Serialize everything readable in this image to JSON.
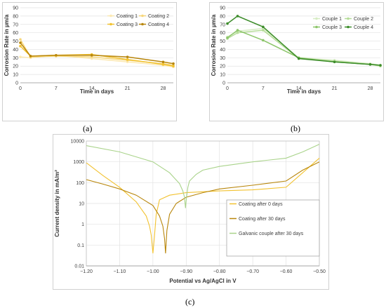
{
  "panels": {
    "a_label": "(a)",
    "b_label": "(b)",
    "c_label": "(c)"
  },
  "chart_data": [
    {
      "id": "a",
      "type": "line",
      "xlabel": "Time in days",
      "ylabel": "Corrosion Rate in µm/a",
      "xlim": [
        0,
        30
      ],
      "ylim": [
        0,
        90
      ],
      "xticks": [
        0,
        7,
        14,
        21,
        28
      ],
      "yticks": [
        0,
        10,
        20,
        30,
        40,
        50,
        60,
        70,
        80,
        90
      ],
      "grid": true,
      "legend": "top-right",
      "series": [
        {
          "name": "Coating 1",
          "color": "#fce9b3",
          "x": [
            0,
            2,
            7,
            14,
            21,
            28,
            30
          ],
          "y": [
            31,
            30,
            33,
            29,
            25,
            21,
            19
          ]
        },
        {
          "name": "Coating 2",
          "color": "#f7d77a",
          "x": [
            0,
            2,
            7,
            14,
            21,
            28,
            30
          ],
          "y": [
            52,
            31,
            32,
            31,
            27,
            23,
            21
          ]
        },
        {
          "name": "Coating 3",
          "color": "#f2c230",
          "x": [
            0,
            2,
            7,
            14,
            21,
            28,
            30
          ],
          "y": [
            44,
            32,
            33,
            34,
            28,
            22,
            20
          ]
        },
        {
          "name": "Coating 4",
          "color": "#b8860b",
          "x": [
            0,
            2,
            7,
            14,
            21,
            28,
            30
          ],
          "y": [
            48,
            32,
            33,
            33,
            31,
            25,
            23
          ]
        }
      ]
    },
    {
      "id": "b",
      "type": "line",
      "xlabel": "Time in days",
      "ylabel": "Corrosion Rate in µm/a",
      "xlim": [
        0,
        30
      ],
      "ylim": [
        0,
        90
      ],
      "xticks": [
        0,
        7,
        14,
        21,
        28
      ],
      "yticks": [
        0,
        10,
        20,
        30,
        40,
        50,
        60,
        70,
        80,
        90
      ],
      "grid": true,
      "legend": "top-right",
      "series": [
        {
          "name": "Couple 1",
          "color": "#d6ecc4",
          "x": [
            0,
            2,
            7,
            14,
            21,
            28,
            30
          ],
          "y": [
            55,
            62,
            65,
            30,
            27,
            23,
            21
          ]
        },
        {
          "name": "Couple 2",
          "color": "#b5dc98",
          "x": [
            0,
            2,
            7,
            14,
            21,
            28,
            30
          ],
          "y": [
            53,
            60,
            63,
            29,
            26,
            22,
            20
          ]
        },
        {
          "name": "Couple 3",
          "color": "#8cc56a",
          "x": [
            0,
            2,
            7,
            14,
            21,
            28,
            30
          ],
          "y": [
            54,
            63,
            51,
            30,
            25,
            22,
            21
          ]
        },
        {
          "name": "Couple 4",
          "color": "#3c8c2a",
          "x": [
            0,
            2,
            7,
            14,
            21,
            28,
            30
          ],
          "y": [
            71,
            80,
            67,
            29,
            25,
            22,
            21
          ]
        }
      ]
    },
    {
      "id": "c",
      "type": "line",
      "xlabel": "Potential vs Ag/AgCl in V",
      "ylabel": "Current density in mA/m²",
      "yscale": "log",
      "xlim": [
        -1.2,
        -0.5
      ],
      "ylim": [
        0.01,
        10000
      ],
      "xticks": [
        -1.2,
        -1.1,
        -1.0,
        -0.9,
        -0.8,
        -0.7,
        -0.6,
        -0.5
      ],
      "xtick_labels": [
        "−1.20",
        "−1.10",
        "−1.00",
        "−0.90",
        "−0.80",
        "−0.70",
        "−0.60",
        "−0.50"
      ],
      "yticks": [
        0.01,
        0.1,
        1,
        10,
        100,
        1000,
        10000
      ],
      "ytick_labels": [
        "0.01",
        "0.1",
        "1",
        "10",
        "100",
        "1000",
        "10000"
      ],
      "grid": true,
      "legend": "bottom-right",
      "series": [
        {
          "name": "Coating after 0 days",
          "color": "#f2c230",
          "x": [
            -1.2,
            -1.15,
            -1.1,
            -1.05,
            -1.02,
            -1.01,
            -1.005,
            -1.0,
            -0.995,
            -0.99,
            -0.98,
            -0.95,
            -0.9,
            -0.8,
            -0.7,
            -0.6,
            -0.55,
            -0.5
          ],
          "y": [
            900,
            220,
            60,
            12,
            2.5,
            0.8,
            0.3,
            0.04,
            0.3,
            3,
            15,
            25,
            33,
            40,
            45,
            60,
            300,
            1500
          ]
        },
        {
          "name": "Coating after 30 days",
          "color": "#b8860b",
          "x": [
            -1.2,
            -1.15,
            -1.1,
            -1.05,
            -1.0,
            -0.98,
            -0.97,
            -0.965,
            -0.962,
            -0.958,
            -0.95,
            -0.93,
            -0.9,
            -0.85,
            -0.8,
            -0.7,
            -0.6,
            -0.55,
            -0.5
          ],
          "y": [
            140,
            85,
            50,
            25,
            8,
            2.5,
            0.8,
            0.2,
            0.04,
            0.5,
            3,
            10,
            20,
            33,
            50,
            75,
            120,
            400,
            1000
          ]
        },
        {
          "name": "Galvanic couple after 30 days",
          "color": "#a9d38a",
          "x": [
            -1.2,
            -1.1,
            -1.0,
            -0.95,
            -0.92,
            -0.91,
            -0.905,
            -0.902,
            -0.899,
            -0.895,
            -0.89,
            -0.87,
            -0.85,
            -0.8,
            -0.7,
            -0.6,
            -0.55,
            -0.5
          ],
          "y": [
            6000,
            3000,
            1000,
            300,
            90,
            40,
            20,
            6,
            20,
            60,
            120,
            250,
            400,
            600,
            1000,
            1500,
            3000,
            7000
          ]
        }
      ]
    }
  ]
}
